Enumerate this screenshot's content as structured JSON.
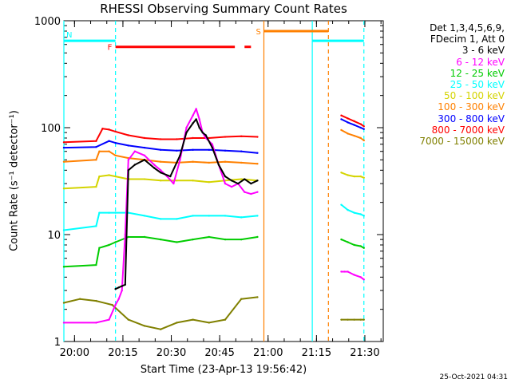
{
  "chart_data": {
    "type": "line",
    "title": "RHESSI Observing Summary Count Rates",
    "xlabel": "Start Time (23-Apr-13 19:56:42)",
    "ylabel": "Count Rate (s⁻¹ detector⁻¹)",
    "yscale": "log",
    "ylim": [
      1,
      1000
    ],
    "xlim_minutes_after_start": [
      0,
      99
    ],
    "x_ticks": [
      "20:00",
      "20:15",
      "20:30",
      "20:45",
      "21:00",
      "21:15",
      "21:30"
    ],
    "y_ticks": [
      "1",
      "10",
      "100",
      "1000"
    ],
    "legend_header": [
      "Det 1,3,4,5,6,9,",
      "FDecim 1, Att 0"
    ],
    "legend_placement": "right",
    "series": [
      {
        "name": "3 - 6 keV",
        "color": "#000000",
        "x": [
          16,
          17,
          18,
          19,
          20,
          22,
          25,
          28,
          30,
          33,
          36,
          38,
          40,
          41,
          42,
          43,
          44,
          46,
          48,
          50,
          52,
          54,
          56,
          58,
          60
        ],
        "y": [
          3.1,
          3.2,
          3.3,
          3.4,
          40,
          45,
          50,
          42,
          38,
          35,
          55,
          90,
          110,
          120,
          100,
          90,
          85,
          65,
          45,
          35,
          32,
          30,
          33,
          30,
          32
        ]
      },
      {
        "name": "6 - 12 keV",
        "color": "#ff00ff",
        "x": [
          0,
          10,
          14,
          16,
          17,
          18,
          19,
          20,
          22,
          25,
          28,
          30,
          32,
          34,
          36,
          38,
          40,
          41,
          42,
          43,
          44,
          46,
          48,
          50,
          52,
          54,
          56,
          58,
          60,
          86,
          87,
          88,
          90,
          92,
          93
        ],
        "y": [
          1.5,
          1.5,
          1.6,
          2.2,
          2.5,
          3.0,
          10,
          50,
          60,
          55,
          45,
          40,
          35,
          30,
          50,
          100,
          130,
          150,
          120,
          90,
          80,
          70,
          45,
          30,
          28,
          30,
          25,
          24,
          25,
          4.5,
          4.5,
          4.5,
          4.2,
          4.0,
          3.8
        ]
      },
      {
        "name": "12 - 25 keV",
        "color": "#00cc00",
        "x": [
          0,
          10,
          11,
          14,
          16,
          20,
          25,
          30,
          35,
          40,
          45,
          50,
          55,
          60,
          86,
          88,
          90,
          92,
          93
        ],
        "y": [
          5.0,
          5.2,
          7.5,
          8.0,
          8.5,
          9.5,
          9.5,
          9.0,
          8.5,
          9.0,
          9.5,
          9.0,
          9.0,
          9.5,
          9.0,
          8.5,
          8.0,
          7.8,
          7.5
        ]
      },
      {
        "name": "25 - 50 keV",
        "color": "#00ffff",
        "x": [
          0,
          10,
          11,
          14,
          16,
          20,
          25,
          30,
          35,
          40,
          45,
          50,
          55,
          60,
          86,
          88,
          90,
          92,
          93
        ],
        "y": [
          11,
          12,
          16,
          16,
          16,
          16,
          15,
          14,
          14,
          15,
          15,
          15,
          14.5,
          15,
          19,
          17,
          16,
          15.5,
          15
        ]
      },
      {
        "name": "50 - 100 keV",
        "color": "#d4d400",
        "x": [
          0,
          10,
          11,
          14,
          16,
          20,
          25,
          30,
          35,
          40,
          45,
          50,
          55,
          60,
          86,
          88,
          90,
          92,
          93
        ],
        "y": [
          27,
          28,
          35,
          36,
          35,
          33,
          33,
          32,
          32,
          32,
          31,
          32,
          33,
          32,
          38,
          36,
          35,
          35,
          34
        ]
      },
      {
        "name": "100 - 300 keV",
        "color": "#ff8000",
        "x": [
          0,
          10,
          11,
          14,
          16,
          20,
          25,
          30,
          35,
          40,
          45,
          50,
          55,
          60,
          86,
          88,
          90,
          92,
          93
        ],
        "y": [
          48,
          50,
          60,
          60,
          55,
          52,
          50,
          48,
          47,
          48,
          47,
          48,
          47,
          46,
          95,
          88,
          84,
          80,
          76
        ]
      },
      {
        "name": "300 - 800 keV",
        "color": "#0000ff",
        "x": [
          0,
          10,
          14,
          16,
          20,
          25,
          30,
          35,
          40,
          45,
          50,
          55,
          60,
          86,
          88,
          90,
          92,
          93
        ],
        "y": [
          65,
          66,
          75,
          72,
          68,
          65,
          62,
          61,
          62,
          62,
          61,
          60,
          58,
          120,
          112,
          106,
          100,
          97
        ]
      },
      {
        "name": "800 - 7000 keV",
        "color": "#ff0000",
        "x": [
          0,
          10,
          12,
          14,
          16,
          20,
          25,
          30,
          35,
          40,
          45,
          50,
          55,
          60,
          86,
          88,
          90,
          92,
          93
        ],
        "y": [
          73,
          75,
          98,
          96,
          92,
          85,
          80,
          78,
          78,
          80,
          80,
          82,
          83,
          82,
          130,
          122,
          115,
          108,
          103
        ]
      },
      {
        "name": "7000 - 15000 keV",
        "color": "#808000",
        "x": [
          0,
          5,
          10,
          15,
          20,
          25,
          30,
          35,
          40,
          45,
          50,
          55,
          60,
          86,
          88,
          90,
          92,
          93
        ],
        "y": [
          2.3,
          2.5,
          2.4,
          2.2,
          1.6,
          1.4,
          1.3,
          1.5,
          1.6,
          1.5,
          1.6,
          2.5,
          2.6,
          1.6,
          1.6,
          1.6,
          1.6,
          1.6
        ]
      }
    ],
    "annotations": [
      {
        "label": "N",
        "color": "#00ffff",
        "x_range": [
          0,
          16
        ],
        "y": 650
      },
      {
        "label": "F",
        "color": "#ff0000",
        "x_range": [
          16,
          53
        ],
        "y": 570
      },
      {
        "label": "",
        "color": "#ff0000",
        "x_range": [
          56,
          58
        ],
        "y": 570
      },
      {
        "label": "S",
        "color": "#ff8000",
        "x_range": [
          62,
          82
        ],
        "y": 800
      },
      {
        "label": "",
        "color": "#00ffff",
        "x_range": [
          77,
          93
        ],
        "y": 650
      }
    ],
    "vertical_markers": [
      {
        "x": 0,
        "color": "#00ffff",
        "style": "solid"
      },
      {
        "x": 16,
        "color": "#00ffff",
        "style": "dashed"
      },
      {
        "x": 62,
        "color": "#ff8000",
        "style": "solid"
      },
      {
        "x": 77,
        "color": "#00ffff",
        "style": "solid"
      },
      {
        "x": 82,
        "color": "#ff8000",
        "style": "dashed"
      },
      {
        "x": 93,
        "color": "#00ffff",
        "style": "dashed"
      }
    ]
  },
  "footer": "25-Oct-2021 04:31"
}
